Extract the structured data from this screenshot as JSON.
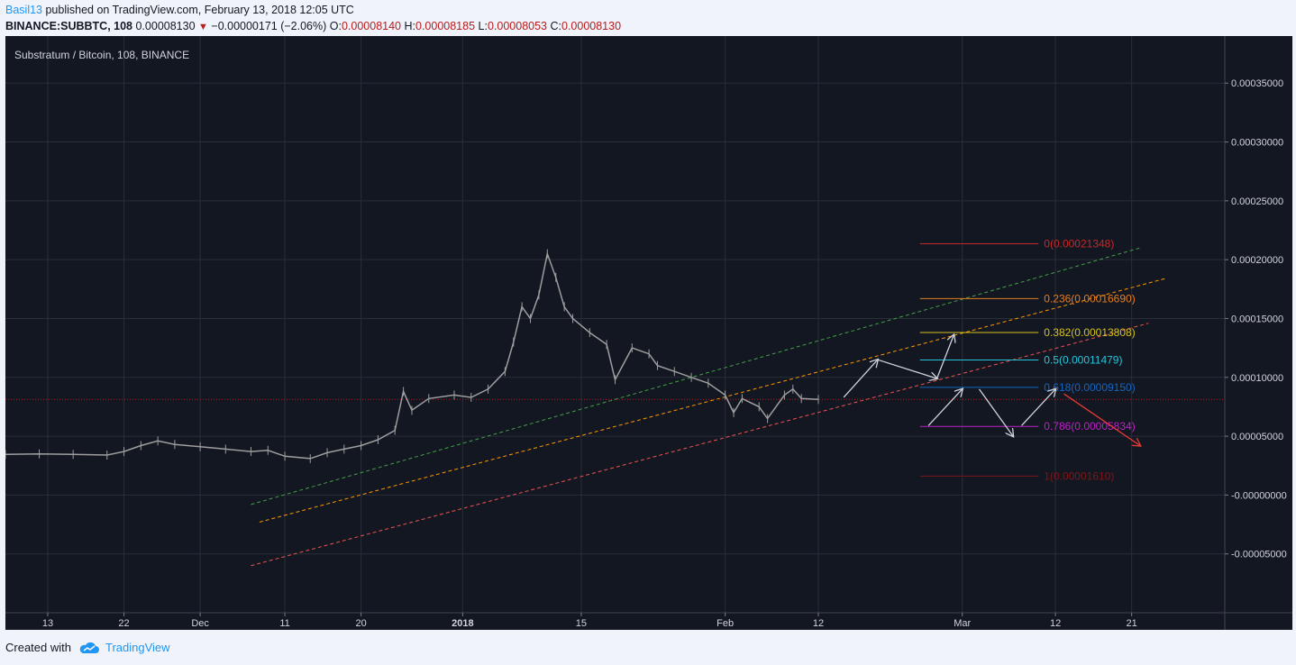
{
  "header": {
    "author": "Basil13",
    "published_text": " published on TradingView.com, February 13, 2018 12:05 UTC",
    "symbol": "BINANCE:SUBBTC, 108",
    "last": "0.00008130",
    "change": "−0.00000171 (−2.06%)",
    "o_label": "O:",
    "o_value": "0.00008140",
    "h_label": "H:",
    "h_value": "0.00008185",
    "l_label": "L:",
    "l_value": "0.00008053",
    "c_label": "C:",
    "c_value": "0.00008130"
  },
  "footer": {
    "created_with": "Created with",
    "brand": "TradingView"
  },
  "colors": {
    "background": "#131722",
    "grid": "#2a2e39",
    "price_line": "#b71c1c",
    "candle": "#9e9e9e",
    "channel_green": "#43a047",
    "channel_orange": "#ff9800",
    "channel_red": "#ef5350",
    "arrow": "#d1d4dc",
    "arrow_red": "#e53935"
  },
  "chart_data": {
    "type": "line",
    "title": "Substratum / Bitcoin, 108, BINANCE",
    "y_ticks": [
      {
        "v": 0.00035,
        "label": "0.00035000"
      },
      {
        "v": 0.0003,
        "label": "0.00030000"
      },
      {
        "v": 0.00025,
        "label": "0.00025000"
      },
      {
        "v": 0.0002,
        "label": "0.00020000"
      },
      {
        "v": 0.00015,
        "label": "0.00015000"
      },
      {
        "v": 0.0001,
        "label": "0.00010000"
      },
      {
        "v": 5e-05,
        "label": "0.00005000"
      },
      {
        "v": 0.0,
        "label": "-0.00000000"
      },
      {
        "v": -5e-05,
        "label": "-0.00005000"
      }
    ],
    "ylim": [
      -0.0001,
      0.00039
    ],
    "x_ticks": [
      {
        "date": "2017-11-13",
        "label": "13",
        "bold": false
      },
      {
        "date": "2017-11-22",
        "label": "22",
        "bold": false
      },
      {
        "date": "2017-12-01",
        "label": "Dec",
        "bold": false
      },
      {
        "date": "2017-12-11",
        "label": "11",
        "bold": false
      },
      {
        "date": "2017-12-20",
        "label": "20",
        "bold": false
      },
      {
        "date": "2018-01-01",
        "label": "2018",
        "bold": true
      },
      {
        "date": "2018-01-15",
        "label": "15",
        "bold": false
      },
      {
        "date": "2018-02-01",
        "label": "Feb",
        "bold": false
      },
      {
        "date": "2018-02-12",
        "label": "12",
        "bold": false
      },
      {
        "date": "2018-03-01",
        "label": "Mar",
        "bold": false
      },
      {
        "date": "2018-03-12",
        "label": "12",
        "bold": false
      },
      {
        "date": "2018-03-21",
        "label": "21",
        "bold": false
      }
    ],
    "xlim": [
      "2017-11-08",
      "2018-04-01"
    ],
    "current_price": 8.13e-05,
    "series": [
      {
        "values": [
          [
            "2017-11-08",
            3.45e-05
          ],
          [
            "2017-11-12",
            3.5e-05
          ],
          [
            "2017-11-16",
            3.45e-05
          ],
          [
            "2017-11-20",
            3.4e-05
          ],
          [
            "2017-11-22",
            3.7e-05
          ],
          [
            "2017-11-24",
            4.2e-05
          ],
          [
            "2017-11-26",
            4.6e-05
          ],
          [
            "2017-11-28",
            4.3e-05
          ],
          [
            "2017-12-01",
            4.1e-05
          ],
          [
            "2017-12-04",
            3.9e-05
          ],
          [
            "2017-12-07",
            3.7e-05
          ],
          [
            "2017-12-09",
            3.8e-05
          ],
          [
            "2017-12-11",
            3.3e-05
          ],
          [
            "2017-12-14",
            3.1e-05
          ],
          [
            "2017-12-16",
            3.6e-05
          ],
          [
            "2017-12-18",
            3.9e-05
          ],
          [
            "2017-12-20",
            4.2e-05
          ],
          [
            "2017-12-22",
            4.7e-05
          ],
          [
            "2017-12-24",
            5.5e-05
          ],
          [
            "2017-12-25",
            8.8e-05
          ],
          [
            "2017-12-26",
            7.2e-05
          ],
          [
            "2017-12-28",
            8.2e-05
          ],
          [
            "2017-12-31",
            8.5e-05
          ],
          [
            "2018-01-02",
            8.3e-05
          ],
          [
            "2018-01-04",
            9e-05
          ],
          [
            "2018-01-06",
            0.000105
          ],
          [
            "2018-01-07",
            0.00013
          ],
          [
            "2018-01-08",
            0.00016
          ],
          [
            "2018-01-09",
            0.00015
          ],
          [
            "2018-01-10",
            0.00017
          ],
          [
            "2018-01-11",
            0.000205
          ],
          [
            "2018-01-12",
            0.000185
          ],
          [
            "2018-01-13",
            0.00016
          ],
          [
            "2018-01-14",
            0.00015
          ],
          [
            "2018-01-16",
            0.000138
          ],
          [
            "2018-01-18",
            0.000128
          ],
          [
            "2018-01-19",
            9.8e-05
          ],
          [
            "2018-01-21",
            0.000125
          ],
          [
            "2018-01-23",
            0.00012
          ],
          [
            "2018-01-24",
            0.00011
          ],
          [
            "2018-01-26",
            0.000105
          ],
          [
            "2018-01-28",
            0.0001
          ],
          [
            "2018-01-30",
            9.5e-05
          ],
          [
            "2018-02-01",
            8.5e-05
          ],
          [
            "2018-02-02",
            7e-05
          ],
          [
            "2018-02-03",
            8.2e-05
          ],
          [
            "2018-02-05",
            7.5e-05
          ],
          [
            "2018-02-06",
            6.5e-05
          ],
          [
            "2018-02-08",
            8.5e-05
          ],
          [
            "2018-02-09",
            9e-05
          ],
          [
            "2018-02-10",
            8.2e-05
          ],
          [
            "2018-02-12",
            8.13e-05
          ]
        ]
      }
    ],
    "fib_levels": [
      {
        "level": "0",
        "value": 0.00021348,
        "label": "0(0.00021348)",
        "color": "#c62828"
      },
      {
        "level": "0.236",
        "value": 0.0001669,
        "label": "0.236(0.00016690)",
        "color": "#e57c20"
      },
      {
        "level": "0.382",
        "value": 0.00013808,
        "label": "0.382(0.00013808)",
        "color": "#d4c21f"
      },
      {
        "level": "0.5",
        "value": 0.00011479,
        "label": "0.5(0.00011479)",
        "color": "#26c6da"
      },
      {
        "level": "0.618",
        "value": 9.15e-05,
        "label": "0.618(0.00009150)",
        "color": "#1565c0"
      },
      {
        "level": "0.786",
        "value": 5.834e-05,
        "label": "0.786(0.00005834)",
        "color": "#c020c8"
      },
      {
        "level": "1",
        "value": 1.61e-05,
        "label": "1(0.00001610)",
        "color": "#7f1616"
      }
    ]
  }
}
